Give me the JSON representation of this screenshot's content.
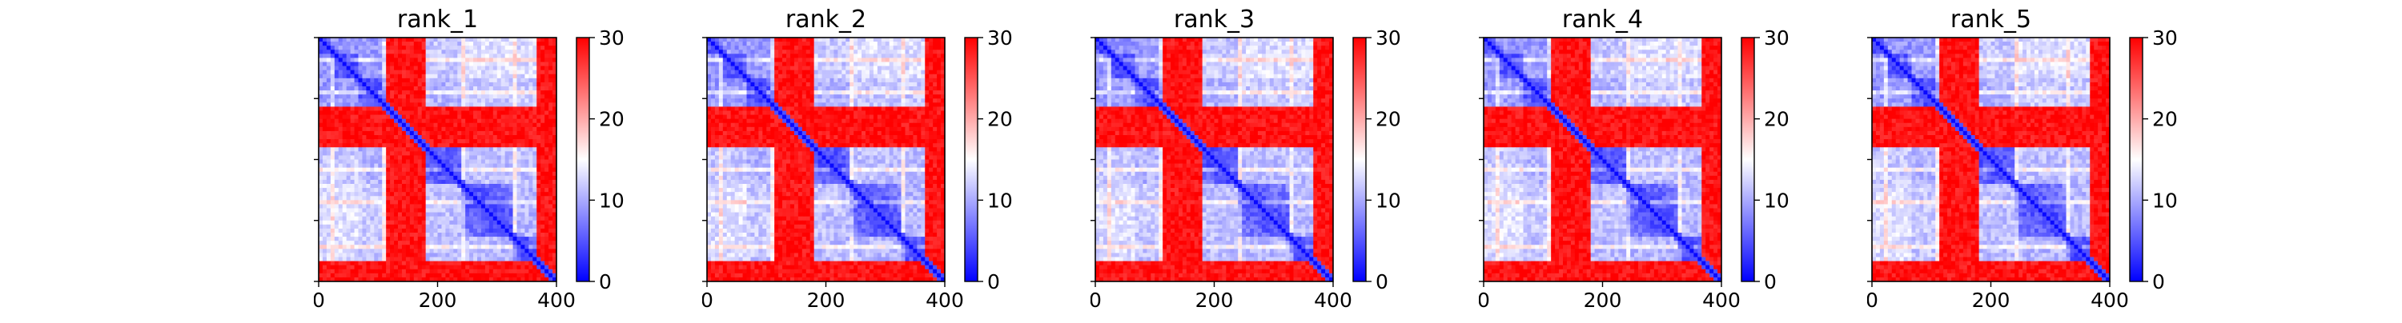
{
  "chart_data": [
    {
      "type": "heatmap",
      "title": "rank_1",
      "x": {
        "lim": [
          0,
          400
        ],
        "ticks": [
          0,
          200,
          400
        ]
      },
      "y": {
        "lim": [
          400,
          0
        ],
        "ticks": [
          0,
          100,
          200,
          300,
          400
        ]
      },
      "colorbar": {
        "min": 0,
        "max": 30,
        "ticks": [
          0,
          10,
          20,
          30
        ],
        "colormap": "bwr"
      },
      "blocks": [
        {
          "range": [
            0,
            30
          ],
          "v": 6
        },
        {
          "range": [
            30,
            70
          ],
          "v": 8
        },
        {
          "range": [
            70,
            115
          ],
          "v": 7
        },
        {
          "range": [
            115,
            180
          ],
          "v": 28
        },
        {
          "range": [
            180,
            240
          ],
          "v": 9
        },
        {
          "range": [
            240,
            330
          ],
          "v": 10
        },
        {
          "range": [
            330,
            370
          ],
          "v": 8
        },
        {
          "range": [
            370,
            400
          ],
          "v": 28
        }
      ]
    },
    {
      "type": "heatmap",
      "title": "rank_2",
      "x": {
        "lim": [
          0,
          400
        ],
        "ticks": [
          0,
          200,
          400
        ]
      },
      "y": {
        "lim": [
          400,
          0
        ],
        "ticks": [
          0,
          100,
          200,
          300,
          400
        ]
      },
      "colorbar": {
        "min": 0,
        "max": 30,
        "ticks": [
          0,
          10,
          20,
          30
        ],
        "colormap": "bwr"
      },
      "blocks": [
        {
          "range": [
            0,
            30
          ],
          "v": 6
        },
        {
          "range": [
            30,
            70
          ],
          "v": 8
        },
        {
          "range": [
            70,
            115
          ],
          "v": 7
        },
        {
          "range": [
            115,
            180
          ],
          "v": 27
        },
        {
          "range": [
            180,
            240
          ],
          "v": 9
        },
        {
          "range": [
            240,
            330
          ],
          "v": 10
        },
        {
          "range": [
            330,
            370
          ],
          "v": 8
        },
        {
          "range": [
            370,
            400
          ],
          "v": 28
        }
      ]
    },
    {
      "type": "heatmap",
      "title": "rank_3",
      "x": {
        "lim": [
          0,
          400
        ],
        "ticks": [
          0,
          200,
          400
        ]
      },
      "y": {
        "lim": [
          400,
          0
        ],
        "ticks": [
          0,
          100,
          200,
          300,
          400
        ]
      },
      "colorbar": {
        "min": 0,
        "max": 30,
        "ticks": [
          0,
          10,
          20,
          30
        ],
        "colormap": "bwr"
      },
      "blocks": [
        {
          "range": [
            0,
            30
          ],
          "v": 6
        },
        {
          "range": [
            30,
            70
          ],
          "v": 8
        },
        {
          "range": [
            70,
            115
          ],
          "v": 7
        },
        {
          "range": [
            115,
            180
          ],
          "v": 28
        },
        {
          "range": [
            180,
            240
          ],
          "v": 9
        },
        {
          "range": [
            240,
            330
          ],
          "v": 10
        },
        {
          "range": [
            330,
            370
          ],
          "v": 8
        },
        {
          "range": [
            370,
            400
          ],
          "v": 28
        }
      ]
    },
    {
      "type": "heatmap",
      "title": "rank_4",
      "x": {
        "lim": [
          0,
          400
        ],
        "ticks": [
          0,
          200,
          400
        ]
      },
      "y": {
        "lim": [
          400,
          0
        ],
        "ticks": [
          0,
          100,
          200,
          300,
          400
        ]
      },
      "colorbar": {
        "min": 0,
        "max": 30,
        "ticks": [
          0,
          10,
          20,
          30
        ],
        "colormap": "bwr"
      },
      "blocks": [
        {
          "range": [
            0,
            30
          ],
          "v": 6
        },
        {
          "range": [
            30,
            70
          ],
          "v": 8
        },
        {
          "range": [
            70,
            115
          ],
          "v": 7
        },
        {
          "range": [
            115,
            180
          ],
          "v": 28
        },
        {
          "range": [
            180,
            240
          ],
          "v": 9
        },
        {
          "range": [
            240,
            330
          ],
          "v": 10
        },
        {
          "range": [
            330,
            370
          ],
          "v": 8
        },
        {
          "range": [
            370,
            400
          ],
          "v": 28
        }
      ]
    },
    {
      "type": "heatmap",
      "title": "rank_5",
      "x": {
        "lim": [
          0,
          400
        ],
        "ticks": [
          0,
          200,
          400
        ]
      },
      "y": {
        "lim": [
          400,
          0
        ],
        "ticks": [
          0,
          100,
          200,
          300,
          400
        ]
      },
      "colorbar": {
        "min": 0,
        "max": 30,
        "ticks": [
          0,
          10,
          20,
          30
        ],
        "colormap": "bwr"
      },
      "blocks": [
        {
          "range": [
            0,
            30
          ],
          "v": 6
        },
        {
          "range": [
            30,
            70
          ],
          "v": 8
        },
        {
          "range": [
            70,
            115
          ],
          "v": 7
        },
        {
          "range": [
            115,
            180
          ],
          "v": 28
        },
        {
          "range": [
            180,
            240
          ],
          "v": 9
        },
        {
          "range": [
            240,
            330
          ],
          "v": 10
        },
        {
          "range": [
            330,
            370
          ],
          "v": 8
        },
        {
          "range": [
            370,
            400
          ],
          "v": 28
        }
      ]
    }
  ]
}
